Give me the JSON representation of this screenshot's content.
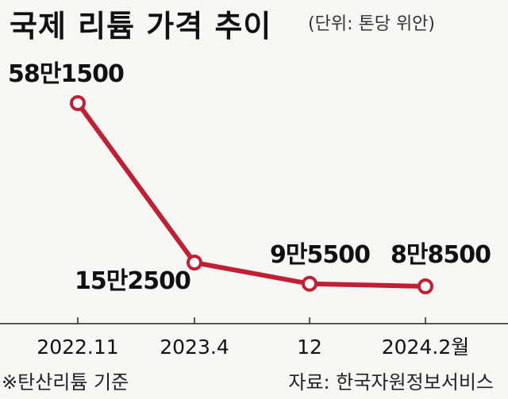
{
  "header": {
    "title": "국제 리튬 가격 추이",
    "unit": "(단위: 톤당 위안)"
  },
  "chart_data": {
    "type": "line",
    "categories": [
      "2022.11",
      "2023.4",
      "12",
      "2024.2월"
    ],
    "series": [
      {
        "values": [
          581500,
          152500,
          95500,
          88500
        ],
        "labels": [
          "58만1500",
          "15만2500",
          "9만5500",
          "8만8500"
        ]
      }
    ],
    "title": "국제 리튬 가격 추이",
    "ylabel": "",
    "xlabel": "",
    "grid": false,
    "legend": "none",
    "line_color": "#c21f32"
  },
  "footer": {
    "note": "※탄산리튬 기준",
    "source": "자료: 한국자원정보서비스"
  }
}
